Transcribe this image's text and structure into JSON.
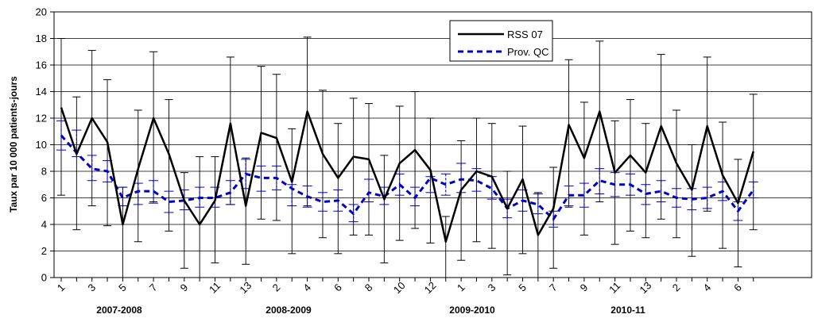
{
  "chart_data": {
    "type": "line",
    "ylabel": "Taux par 10 000 patients-jours",
    "ylim": [
      0,
      20
    ],
    "yticks": [
      "0",
      "2",
      "4",
      "6",
      "8",
      "10",
      "12",
      "14",
      "16",
      "18",
      "20"
    ],
    "x_labels": [
      "1",
      "3",
      "5",
      "7",
      "9",
      "11",
      "13",
      "2",
      "4",
      "6",
      "8",
      "10",
      "12",
      "1",
      "3",
      "5",
      "7",
      "9",
      "11",
      "13",
      "2",
      "4",
      "6"
    ],
    "periods": [
      "2007-2008",
      "2008-2009",
      "2009-2010",
      "2010-11"
    ],
    "legend": {
      "position": "top-center"
    },
    "colors": {
      "rss": "#000000",
      "prov": "#0000cc"
    },
    "series": [
      {
        "name": "RSS 07",
        "values": [
          12.8,
          9.3,
          12.0,
          10.2,
          4.0,
          8.2,
          12.0,
          9.3,
          5.8,
          4.0,
          5.8,
          11.6,
          5.4,
          10.9,
          10.5,
          7.2,
          12.5,
          9.3,
          7.5,
          9.1,
          8.9,
          5.9,
          8.6,
          9.6,
          8.1,
          2.7,
          6.6,
          8.0,
          7.6,
          5.2,
          7.4,
          3.2,
          5.2,
          11.5,
          9.0,
          12.5,
          7.9,
          9.2,
          7.9,
          11.4,
          8.6,
          6.6,
          11.4,
          7.7,
          5.6,
          9.5
        ],
        "ci_low": [
          6.2,
          3.6,
          5.4,
          3.9,
          0.0,
          2.7,
          5.7,
          3.5,
          0.7,
          0.0,
          1.1,
          5.5,
          1.0,
          4.4,
          4.3,
          1.8,
          5.4,
          3.0,
          1.8,
          3.2,
          3.2,
          1.1,
          2.8,
          3.7,
          2.6,
          0.0,
          1.3,
          2.7,
          2.2,
          0.2,
          1.8,
          0.0,
          0.7,
          5.3,
          3.2,
          5.7,
          2.5,
          3.5,
          3.0,
          4.4,
          3.0,
          1.6,
          5.0,
          2.2,
          0.8,
          3.6
        ],
        "ci_high": [
          18.0,
          13.6,
          17.1,
          14.9,
          6.8,
          12.6,
          17.0,
          13.4,
          7.9,
          9.1,
          9.1,
          16.6,
          9.0,
          15.9,
          15.3,
          11.2,
          18.1,
          14.1,
          11.6,
          13.5,
          13.1,
          9.2,
          12.9,
          14.0,
          12.0,
          4.6,
          10.3,
          12.0,
          11.6,
          8.0,
          11.4,
          6.4,
          8.3,
          16.4,
          13.2,
          17.8,
          11.8,
          13.4,
          11.6,
          16.8,
          12.6,
          10.0,
          16.6,
          11.7,
          8.9,
          13.8
        ]
      },
      {
        "name": "Prov. QC",
        "values": [
          10.7,
          9.4,
          8.2,
          8.0,
          6.0,
          6.5,
          6.5,
          5.7,
          5.8,
          6.0,
          6.0,
          6.4,
          7.8,
          7.5,
          7.5,
          6.7,
          6.1,
          5.7,
          5.8,
          4.8,
          6.4,
          6.1,
          7.0,
          6.0,
          7.5,
          7.0,
          7.4,
          7.3,
          6.7,
          5.2,
          5.8,
          5.5,
          4.4,
          6.2,
          6.2,
          7.3,
          7.0,
          7.0,
          6.3,
          6.5,
          6.0,
          5.9,
          6.0,
          6.5,
          5.0,
          6.6
        ],
        "ci_low": [
          9.6,
          9.1,
          7.3,
          7.2,
          5.4,
          5.5,
          5.6,
          4.9,
          5.1,
          5.3,
          5.3,
          5.5,
          6.7,
          6.5,
          6.6,
          5.4,
          5.3,
          5.0,
          5.0,
          4.2,
          5.7,
          5.5,
          6.2,
          5.4,
          6.4,
          6.2,
          6.4,
          6.5,
          5.9,
          4.5,
          5.0,
          4.8,
          3.8,
          5.4,
          5.3,
          6.3,
          6.1,
          6.2,
          5.5,
          5.7,
          5.3,
          5.1,
          5.2,
          5.8,
          4.3,
          6.0
        ],
        "ci_high": [
          11.8,
          11.1,
          9.2,
          8.8,
          6.8,
          7.1,
          7.3,
          6.5,
          6.6,
          6.8,
          6.8,
          7.3,
          8.9,
          8.4,
          8.4,
          7.0,
          6.9,
          6.4,
          6.6,
          5.5,
          7.4,
          6.8,
          7.8,
          6.8,
          7.6,
          7.8,
          8.6,
          8.2,
          7.6,
          5.9,
          6.6,
          6.3,
          5.0,
          6.9,
          7.1,
          8.2,
          7.9,
          7.8,
          7.0,
          7.3,
          6.7,
          6.7,
          6.8,
          7.2,
          5.7,
          7.2
        ]
      }
    ]
  }
}
